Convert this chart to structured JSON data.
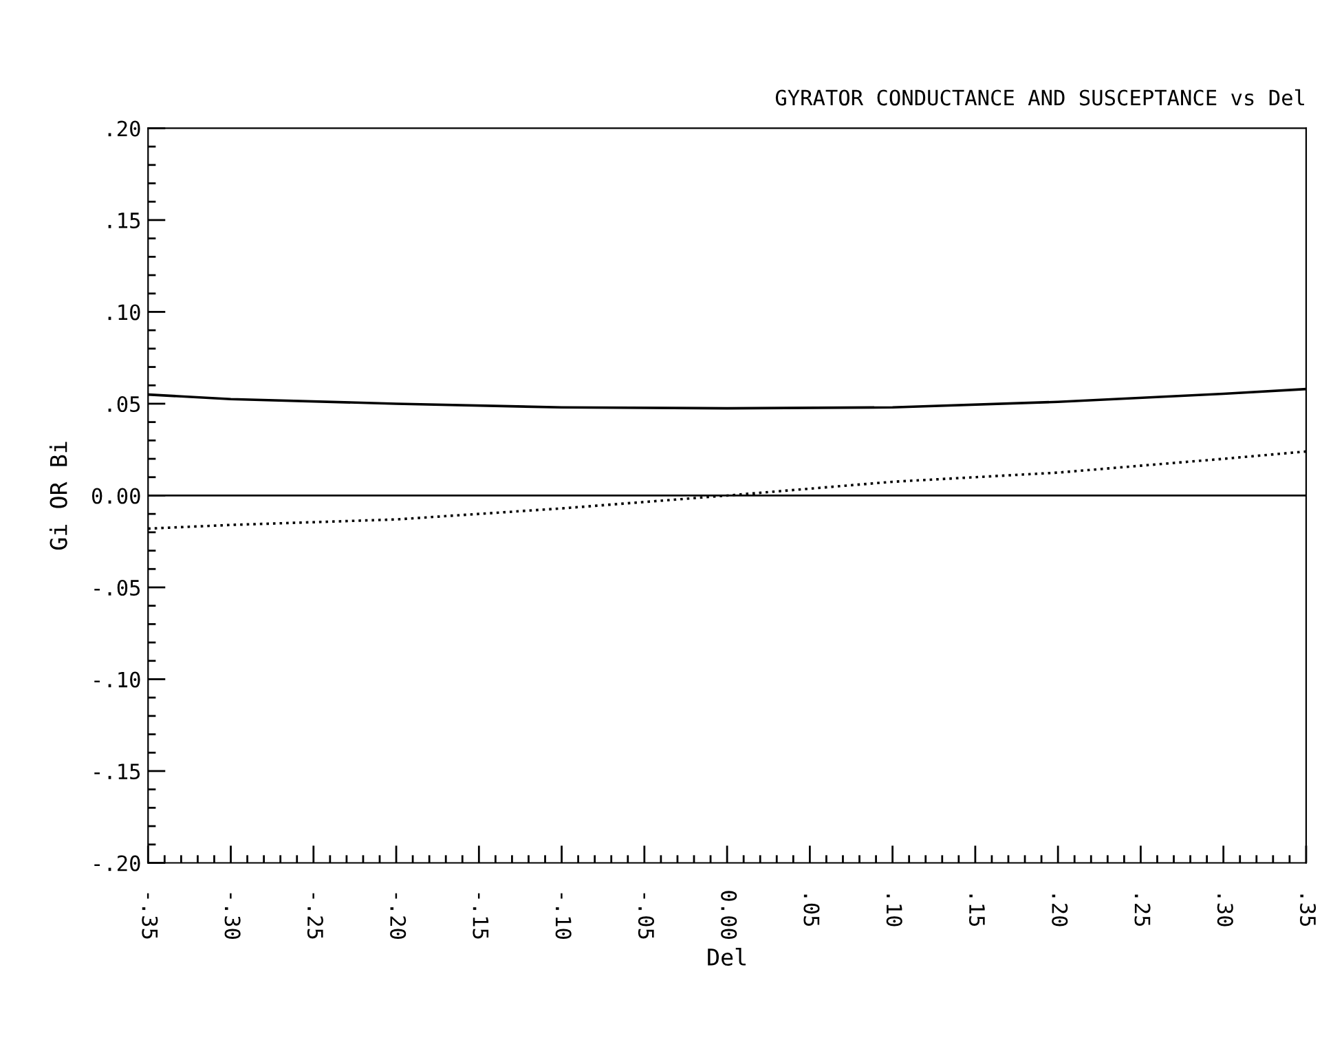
{
  "chart_data": {
    "type": "line",
    "title": "GYRATOR CONDUCTANCE AND SUSCEPTANCE vs Del",
    "xlabel": "Del",
    "ylabel": "Gi OR Bi",
    "series": [
      {
        "color": "#000000",
        "line_style": "solid",
        "x": [
          -0.35,
          -0.3,
          -0.2,
          -0.1,
          0.0,
          0.1,
          0.2,
          0.3,
          0.35
        ],
        "values": [
          0.055,
          0.0525,
          0.05,
          0.048,
          0.0475,
          0.048,
          0.051,
          0.0554,
          0.058
        ]
      },
      {
        "color": "#000000",
        "line_style": "dotted",
        "x": [
          -0.35,
          -0.3,
          -0.2,
          -0.1,
          0.0,
          0.1,
          0.2,
          0.3,
          0.35
        ],
        "values": [
          -0.018,
          -0.016,
          -0.013,
          -0.007,
          0.0,
          0.0075,
          0.0125,
          0.02,
          0.024
        ]
      }
    ],
    "ref_lines": [
      {
        "axis": "y",
        "value": 0,
        "color": "#000000",
        "line_style": "solid"
      }
    ],
    "xlim": [
      -0.35,
      0.35
    ],
    "ylim": [
      -0.2,
      0.2
    ],
    "grid": false,
    "legend": false,
    "marker": "none",
    "xticks": [
      {
        "value": -0.35,
        "label": "-.35"
      },
      {
        "value": -0.34,
        "label": null
      },
      {
        "value": -0.33,
        "label": null
      },
      {
        "value": -0.32,
        "label": null
      },
      {
        "value": -0.31,
        "label": null
      },
      {
        "value": -0.3,
        "label": "-.30"
      },
      {
        "value": -0.29,
        "label": null
      },
      {
        "value": -0.28,
        "label": null
      },
      {
        "value": -0.27,
        "label": null
      },
      {
        "value": -0.26,
        "label": null
      },
      {
        "value": -0.25,
        "label": "-.25"
      },
      {
        "value": -0.24,
        "label": null
      },
      {
        "value": -0.23,
        "label": null
      },
      {
        "value": -0.22,
        "label": null
      },
      {
        "value": -0.21,
        "label": null
      },
      {
        "value": -0.2,
        "label": "-.20"
      },
      {
        "value": -0.19,
        "label": null
      },
      {
        "value": -0.18,
        "label": null
      },
      {
        "value": -0.17,
        "label": null
      },
      {
        "value": -0.16,
        "label": null
      },
      {
        "value": -0.15,
        "label": "-.15"
      },
      {
        "value": -0.14,
        "label": null
      },
      {
        "value": -0.13,
        "label": null
      },
      {
        "value": -0.12,
        "label": null
      },
      {
        "value": -0.11,
        "label": null
      },
      {
        "value": -0.1,
        "label": "-.10"
      },
      {
        "value": -0.09,
        "label": null
      },
      {
        "value": -0.08,
        "label": null
      },
      {
        "value": -0.07,
        "label": null
      },
      {
        "value": -0.06,
        "label": null
      },
      {
        "value": -0.05,
        "label": "-.05"
      },
      {
        "value": -0.04,
        "label": null
      },
      {
        "value": -0.03,
        "label": null
      },
      {
        "value": -0.02,
        "label": null
      },
      {
        "value": -0.01,
        "label": null
      },
      {
        "value": 0,
        "label": "0.00"
      },
      {
        "value": 0.01,
        "label": null
      },
      {
        "value": 0.02,
        "label": null
      },
      {
        "value": 0.03,
        "label": null
      },
      {
        "value": 0.04,
        "label": null
      },
      {
        "value": 0.05,
        "label": ".05"
      },
      {
        "value": 0.06,
        "label": null
      },
      {
        "value": 0.07,
        "label": null
      },
      {
        "value": 0.08,
        "label": null
      },
      {
        "value": 0.09,
        "label": null
      },
      {
        "value": 0.1,
        "label": ".10"
      },
      {
        "value": 0.11,
        "label": null
      },
      {
        "value": 0.12,
        "label": null
      },
      {
        "value": 0.13,
        "label": null
      },
      {
        "value": 0.14,
        "label": null
      },
      {
        "value": 0.15,
        "label": ".15"
      },
      {
        "value": 0.16,
        "label": null
      },
      {
        "value": 0.17,
        "label": null
      },
      {
        "value": 0.18,
        "label": null
      },
      {
        "value": 0.19,
        "label": null
      },
      {
        "value": 0.2,
        "label": ".20"
      },
      {
        "value": 0.21,
        "label": null
      },
      {
        "value": 0.22,
        "label": null
      },
      {
        "value": 0.23,
        "label": null
      },
      {
        "value": 0.24,
        "label": null
      },
      {
        "value": 0.25,
        "label": ".25"
      },
      {
        "value": 0.26,
        "label": null
      },
      {
        "value": 0.27,
        "label": null
      },
      {
        "value": 0.28,
        "label": null
      },
      {
        "value": 0.29,
        "label": null
      },
      {
        "value": 0.3,
        "label": ".30"
      },
      {
        "value": 0.31,
        "label": null
      },
      {
        "value": 0.32,
        "label": null
      },
      {
        "value": 0.33,
        "label": null
      },
      {
        "value": 0.34,
        "label": null
      },
      {
        "value": 0.35,
        "label": ".35"
      }
    ],
    "yticks": [
      {
        "value": -0.2,
        "label": "-.20"
      },
      {
        "value": -0.19,
        "label": null
      },
      {
        "value": -0.18,
        "label": null
      },
      {
        "value": -0.17,
        "label": null
      },
      {
        "value": -0.16,
        "label": null
      },
      {
        "value": -0.15,
        "label": "-.15"
      },
      {
        "value": -0.14,
        "label": null
      },
      {
        "value": -0.13,
        "label": null
      },
      {
        "value": -0.12,
        "label": null
      },
      {
        "value": -0.11,
        "label": null
      },
      {
        "value": -0.1,
        "label": "-.10"
      },
      {
        "value": -0.09,
        "label": null
      },
      {
        "value": -0.08,
        "label": null
      },
      {
        "value": -0.07,
        "label": null
      },
      {
        "value": -0.06,
        "label": null
      },
      {
        "value": -0.05,
        "label": "-.05"
      },
      {
        "value": -0.04,
        "label": null
      },
      {
        "value": -0.03,
        "label": null
      },
      {
        "value": -0.02,
        "label": null
      },
      {
        "value": -0.01,
        "label": null
      },
      {
        "value": 0,
        "label": "0.00"
      },
      {
        "value": 0.01,
        "label": null
      },
      {
        "value": 0.02,
        "label": null
      },
      {
        "value": 0.03,
        "label": null
      },
      {
        "value": 0.04,
        "label": null
      },
      {
        "value": 0.05,
        "label": ".05"
      },
      {
        "value": 0.06,
        "label": null
      },
      {
        "value": 0.07,
        "label": null
      },
      {
        "value": 0.08,
        "label": null
      },
      {
        "value": 0.09,
        "label": null
      },
      {
        "value": 0.1,
        "label": ".10"
      },
      {
        "value": 0.11,
        "label": null
      },
      {
        "value": 0.12,
        "label": null
      },
      {
        "value": 0.13,
        "label": null
      },
      {
        "value": 0.14,
        "label": null
      },
      {
        "value": 0.15,
        "label": ".15"
      },
      {
        "value": 0.16,
        "label": null
      },
      {
        "value": 0.17,
        "label": null
      },
      {
        "value": 0.18,
        "label": null
      },
      {
        "value": 0.19,
        "label": null
      },
      {
        "value": 0.2,
        "label": ".20"
      }
    ]
  }
}
